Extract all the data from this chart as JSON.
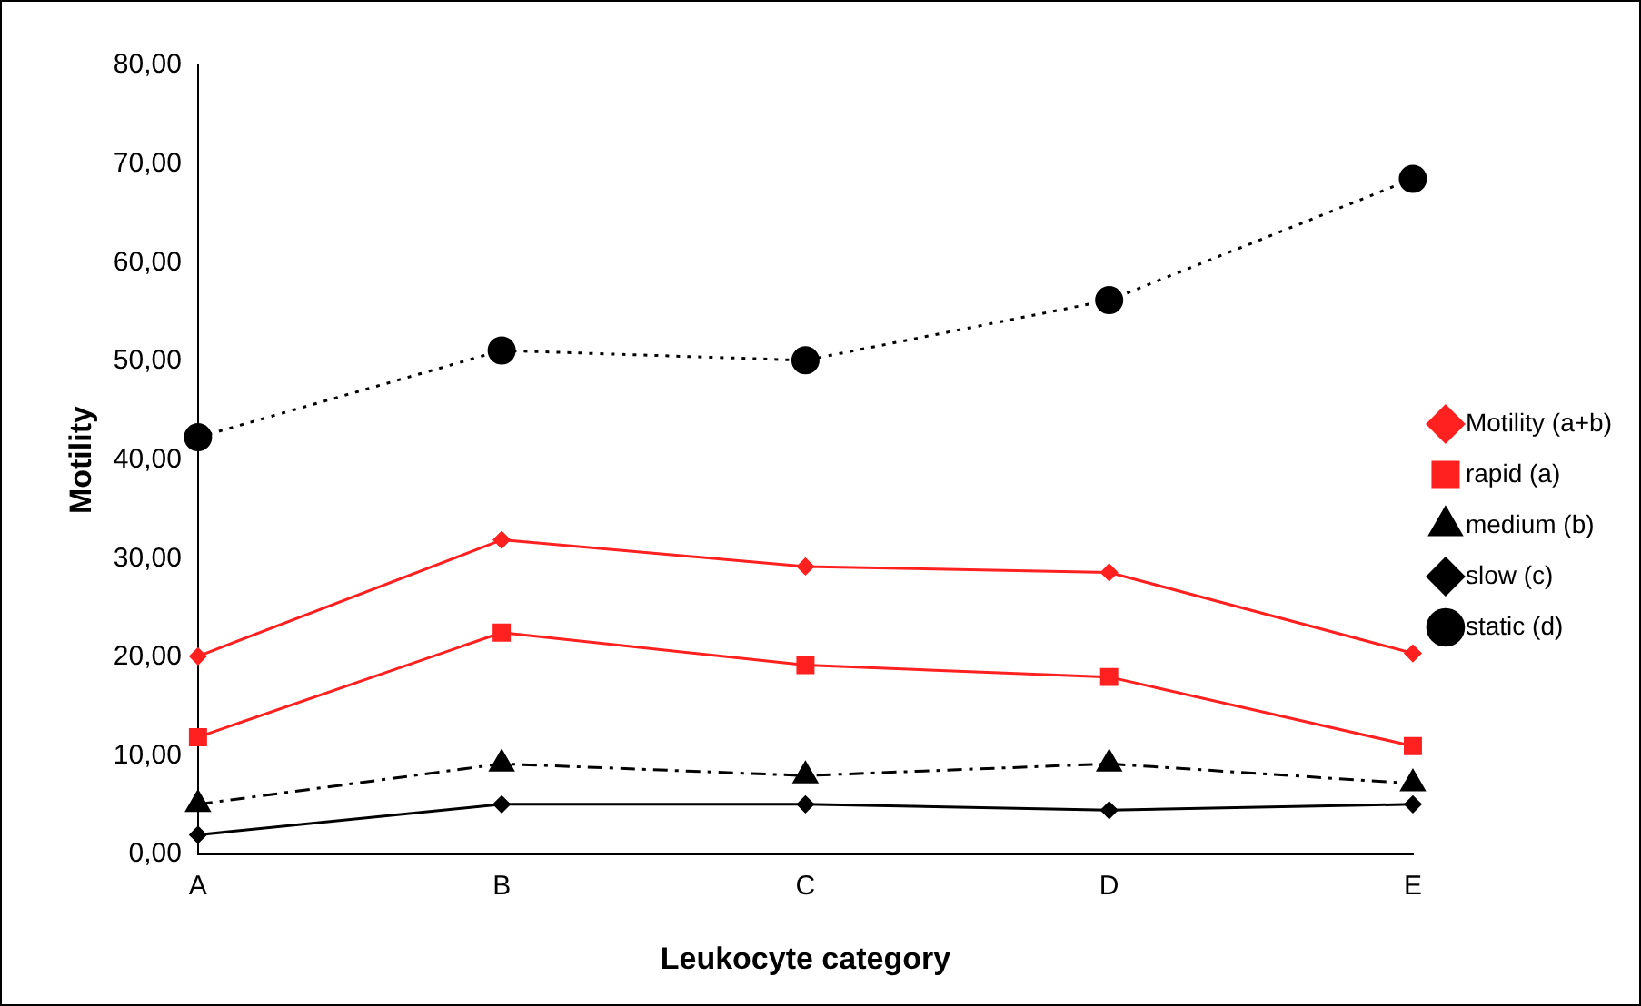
{
  "chart_data": {
    "type": "line",
    "xlabel": "Leukocyte category",
    "ylabel": "Motility",
    "categories": [
      "A",
      "B",
      "C",
      "D",
      "E"
    ],
    "series": [
      {
        "name": "Motility (a+b)",
        "color": "#ff2020",
        "values": [
          20.1,
          31.9,
          29.2,
          28.6,
          20.4
        ],
        "marker": "diamond",
        "line_style": "solid"
      },
      {
        "name": "rapid (a)",
        "color": "#ff2020",
        "values": [
          11.9,
          22.5,
          19.2,
          18.0,
          11.0
        ],
        "marker": "square",
        "line_style": "solid"
      },
      {
        "name": "medium (b)",
        "color": "#000000",
        "values": [
          5.1,
          9.2,
          8.0,
          9.2,
          7.2
        ],
        "marker": "triangle",
        "line_style": "dashed"
      },
      {
        "name": "slow (c)",
        "color": "#000000",
        "values": [
          2.0,
          5.1,
          5.1,
          4.5,
          5.1
        ],
        "marker": "diamond",
        "line_style": "solid"
      },
      {
        "name": "static (d)",
        "color": "#000000",
        "values": [
          42.3,
          51.1,
          50.1,
          56.2,
          68.5
        ],
        "marker": "circle",
        "line_style": "dotted"
      }
    ],
    "ylim": [
      0,
      80
    ],
    "yticks": [
      {
        "value": 0,
        "label": "0,00"
      },
      {
        "value": 10,
        "label": "10,00"
      },
      {
        "value": 20,
        "label": "20,00"
      },
      {
        "value": 30,
        "label": "30,00"
      },
      {
        "value": 40,
        "label": "40,00"
      },
      {
        "value": 50,
        "label": "50,00"
      },
      {
        "value": 60,
        "label": "60,00"
      },
      {
        "value": 70,
        "label": "70,00"
      },
      {
        "value": 80,
        "label": "80,00"
      }
    ],
    "grid": false,
    "legend": "right"
  }
}
